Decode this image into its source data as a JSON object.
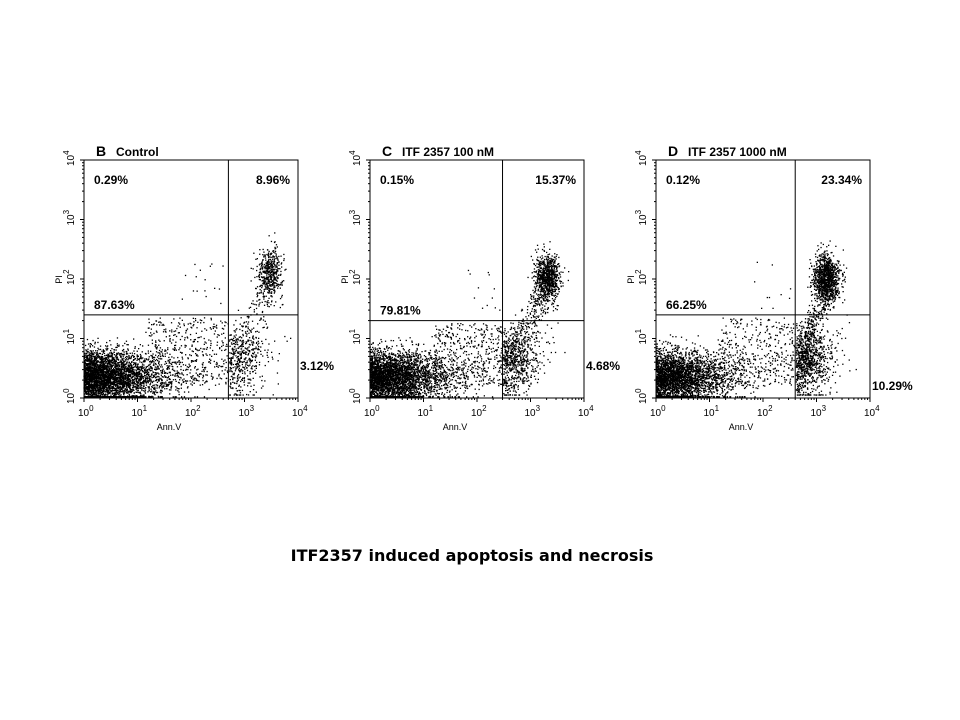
{
  "caption": "ITF2357 induced apoptosis and necrosis",
  "chart_data": [
    {
      "type": "scatter",
      "panel_letter": "B",
      "title": "Control",
      "xlabel": "Ann.V",
      "ylabel": "PI",
      "x_scale": "log",
      "y_scale": "log",
      "xlim": [
        1,
        10000
      ],
      "ylim": [
        1,
        10000
      ],
      "x_ticks": [
        {
          "base": "10",
          "exp": "0"
        },
        {
          "base": "10",
          "exp": "1"
        },
        {
          "base": "10",
          "exp": "2"
        },
        {
          "base": "10",
          "exp": "3"
        },
        {
          "base": "10",
          "exp": "4"
        }
      ],
      "y_ticks": [
        {
          "base": "10",
          "exp": "0"
        },
        {
          "base": "10",
          "exp": "1"
        },
        {
          "base": "10",
          "exp": "2"
        },
        {
          "base": "10",
          "exp": "3"
        },
        {
          "base": "10",
          "exp": "4"
        }
      ],
      "gate": {
        "x": 500,
        "y": 25
      },
      "quadrants": {
        "upper_left": "0.29%",
        "upper_right": "8.96%",
        "lower_left": "87.63%",
        "lower_right": "3.12%"
      },
      "point_density": {
        "lower_left": 3600,
        "lower_right": 420,
        "upper_right": 430,
        "upper_left": 16
      },
      "upper_right_cluster": {
        "x": 3000,
        "y": 130
      }
    },
    {
      "type": "scatter",
      "panel_letter": "C",
      "title": "ITF 2357 100 nM",
      "xlabel": "Ann.V",
      "ylabel": "PI",
      "x_scale": "log",
      "y_scale": "log",
      "xlim": [
        1,
        10000
      ],
      "ylim": [
        1,
        10000
      ],
      "x_ticks": [
        {
          "base": "10",
          "exp": "0"
        },
        {
          "base": "10",
          "exp": "1"
        },
        {
          "base": "10",
          "exp": "2"
        },
        {
          "base": "10",
          "exp": "3"
        },
        {
          "base": "10",
          "exp": "4"
        }
      ],
      "y_ticks": [
        {
          "base": "10",
          "exp": "0"
        },
        {
          "base": "10",
          "exp": "1"
        },
        {
          "base": "10",
          "exp": "2"
        },
        {
          "base": "10",
          "exp": "3"
        },
        {
          "base": "10",
          "exp": "4"
        }
      ],
      "gate": {
        "x": 300,
        "y": 20
      },
      "quadrants": {
        "upper_left": "0.15%",
        "upper_right": "15.37%",
        "lower_left": "79.81%",
        "lower_right": "4.68%"
      },
      "point_density": {
        "lower_left": 3300,
        "lower_right": 600,
        "upper_right": 800,
        "upper_left": 12
      },
      "upper_right_cluster": {
        "x": 2000,
        "y": 100
      }
    },
    {
      "type": "scatter",
      "panel_letter": "D",
      "title": "ITF 2357 1000 nM",
      "xlabel": "Ann.V",
      "ylabel": "PI",
      "x_scale": "log",
      "y_scale": "log",
      "xlim": [
        1,
        10000
      ],
      "ylim": [
        1,
        10000
      ],
      "x_ticks": [
        {
          "base": "10",
          "exp": "0"
        },
        {
          "base": "10",
          "exp": "1"
        },
        {
          "base": "10",
          "exp": "2"
        },
        {
          "base": "10",
          "exp": "3"
        },
        {
          "base": "10",
          "exp": "4"
        }
      ],
      "y_ticks": [
        {
          "base": "10",
          "exp": "0"
        },
        {
          "base": "10",
          "exp": "1"
        },
        {
          "base": "10",
          "exp": "2"
        },
        {
          "base": "10",
          "exp": "3"
        },
        {
          "base": "10",
          "exp": "4"
        }
      ],
      "gate": {
        "x": 400,
        "y": 25
      },
      "quadrants": {
        "upper_left": "0.12%",
        "upper_right": "23.34%",
        "lower_left": "66.25%",
        "lower_right": "10.29%"
      },
      "point_density": {
        "lower_left": 2900,
        "lower_right": 800,
        "upper_right": 1000,
        "upper_left": 10
      },
      "upper_right_cluster": {
        "x": 1500,
        "y": 100
      }
    }
  ]
}
